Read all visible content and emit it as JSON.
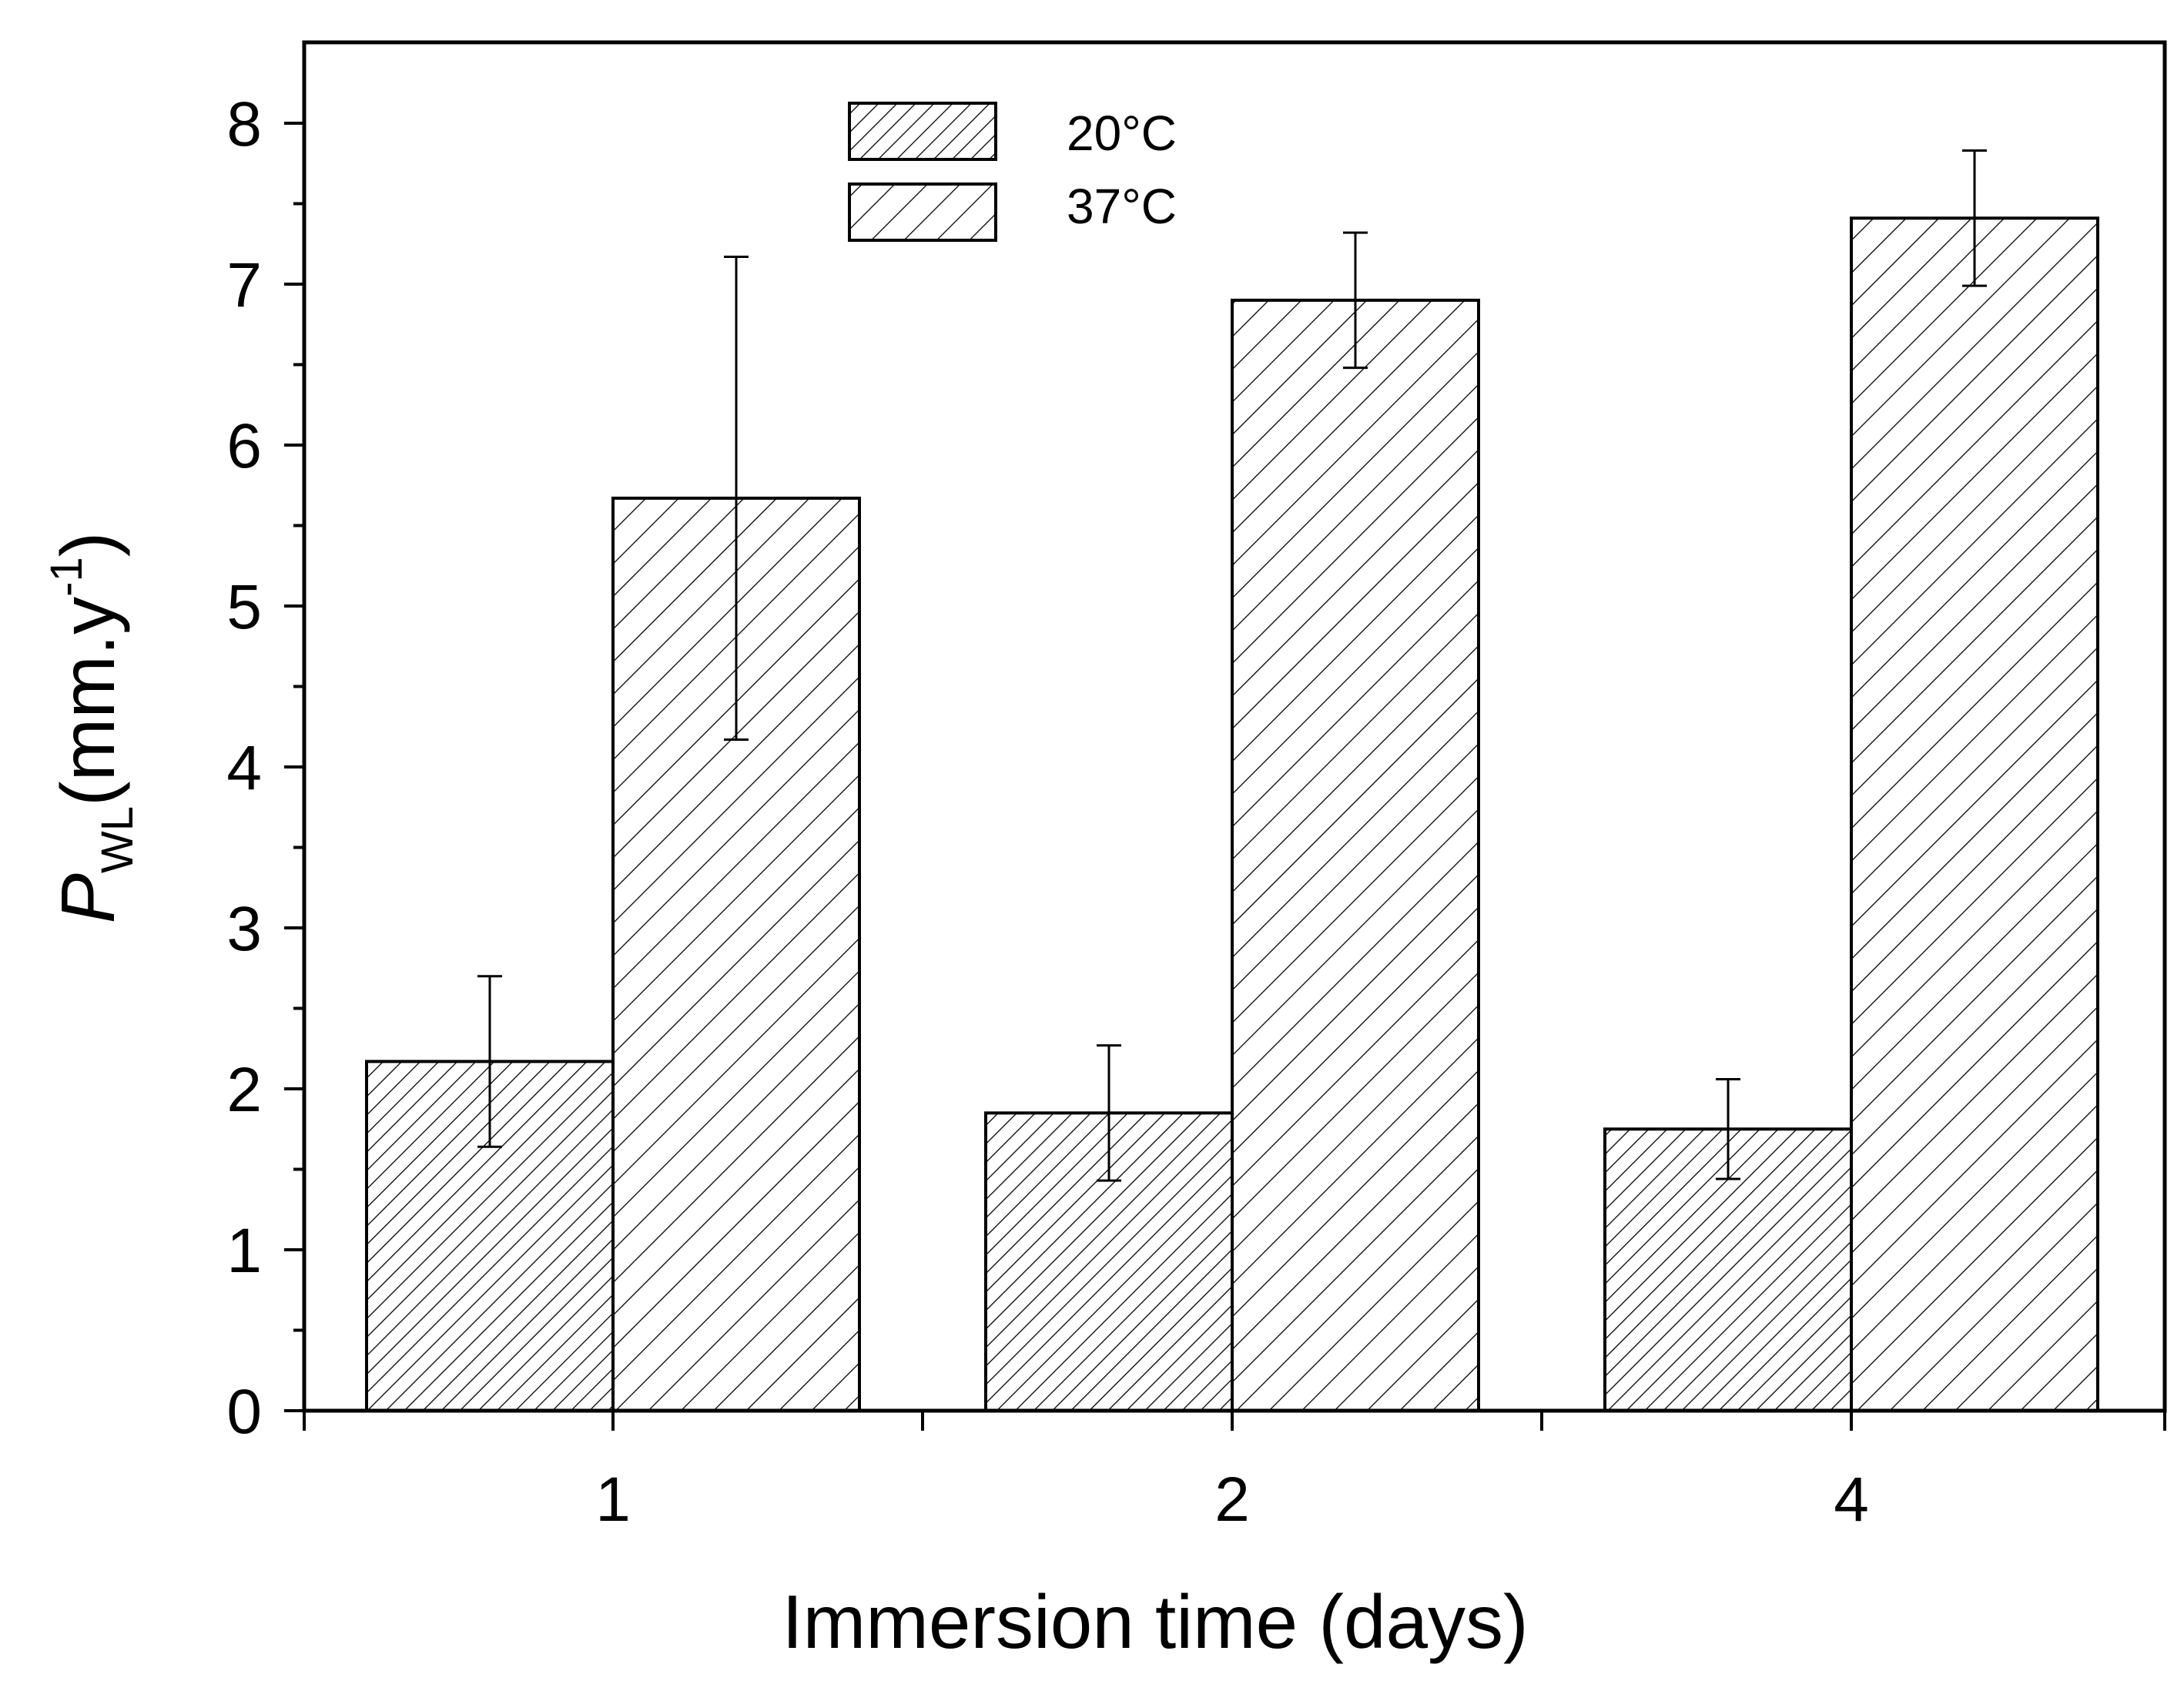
{
  "chart_data": {
    "type": "bar",
    "title": "",
    "xlabel": "Immersion time (days)",
    "ylabel": {
      "main": "P",
      "subscript": "WL",
      "unit_prefix": "(mm.y",
      "superscript": "-1",
      "unit_suffix": ")"
    },
    "categories": [
      "1",
      "2",
      "4"
    ],
    "yticks": [
      "0",
      "1",
      "2",
      "3",
      "4",
      "5",
      "6",
      "7",
      "8"
    ],
    "ylim": [
      0,
      8.5
    ],
    "grid": false,
    "legend_position": "top-center",
    "series": [
      {
        "name": "20°C",
        "values": [
          2.17,
          1.85,
          1.75
        ],
        "errors": [
          0.53,
          0.42,
          0.31
        ],
        "hatch": "dense-diagonal"
      },
      {
        "name": "37°C",
        "values": [
          5.67,
          6.9,
          7.41
        ],
        "errors": [
          1.5,
          0.42,
          0.42
        ],
        "hatch": "sparse-diagonal"
      }
    ]
  }
}
